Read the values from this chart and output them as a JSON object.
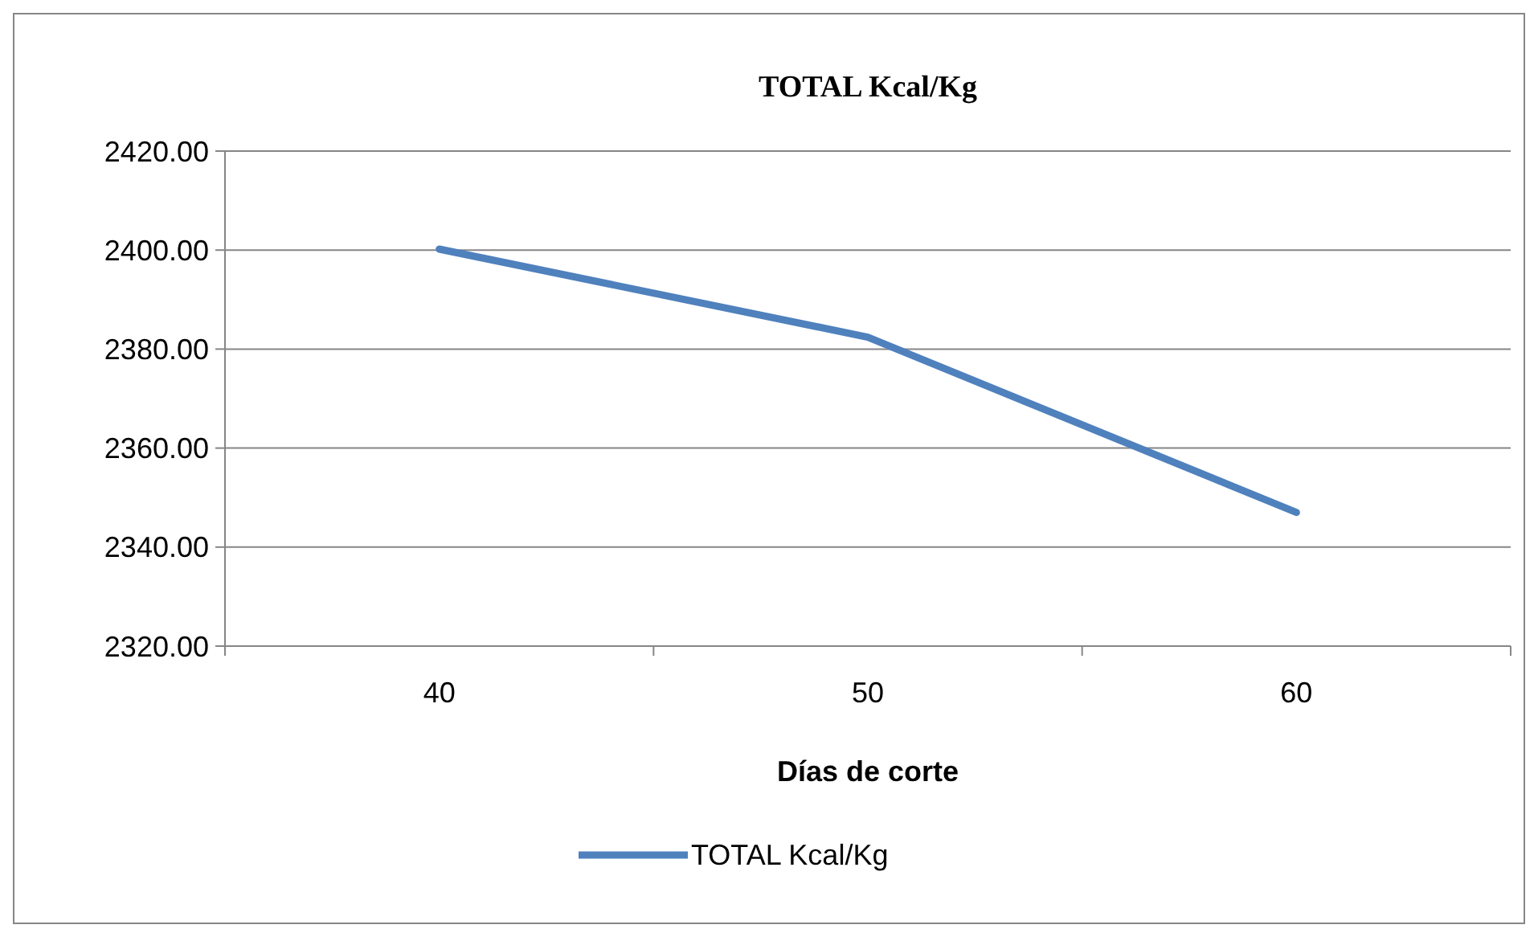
{
  "chart_data": {
    "type": "line",
    "title": "TOTAL Kcal/Kg",
    "xlabel": "Días de corte",
    "categories": [
      "40",
      "50",
      "60"
    ],
    "series": [
      {
        "name": "TOTAL Kcal/Kg",
        "color": "#4f81bd",
        "values": [
          2400.2,
          2382.4,
          2347.0
        ]
      }
    ],
    "ylim": [
      2320,
      2420
    ],
    "yticks": [
      {
        "value": 2320,
        "label": "2320.00"
      },
      {
        "value": 2340,
        "label": "2340.00"
      },
      {
        "value": 2360,
        "label": "2360.00"
      },
      {
        "value": 2380,
        "label": "2380.00"
      },
      {
        "value": 2400,
        "label": "2400.00"
      },
      {
        "value": 2420,
        "label": "2420.00"
      }
    ],
    "grid": "y",
    "legend": "bottom",
    "marker": "none",
    "line_style": "solid"
  }
}
